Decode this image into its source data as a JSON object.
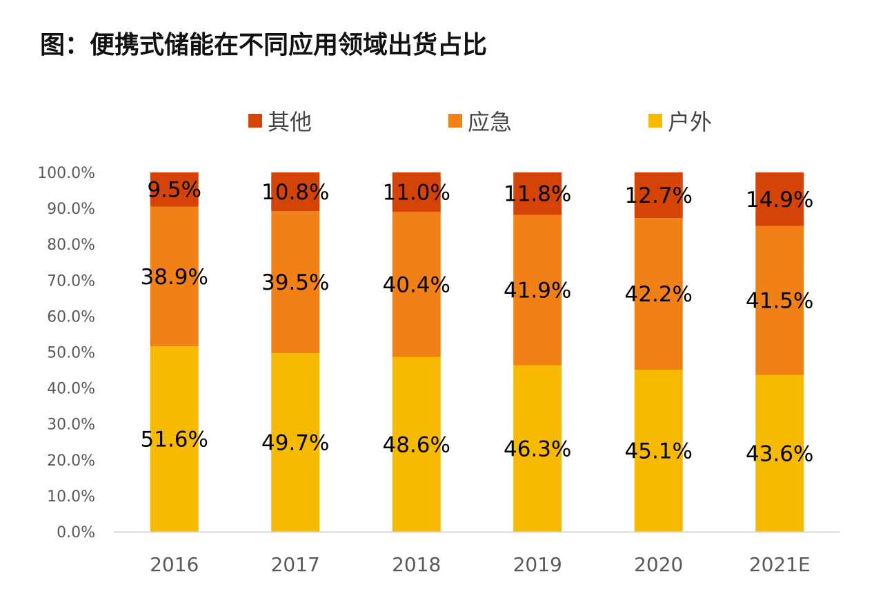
{
  "chart_data": {
    "type": "bar",
    "stacked": true,
    "title": "图：便携式储能在不同应用领域出货占比",
    "categories": [
      "2016",
      "2017",
      "2018",
      "2019",
      "2020",
      "2021E"
    ],
    "series": [
      {
        "name": "户外",
        "color": "#F8BA00",
        "values": [
          51.6,
          49.7,
          48.6,
          46.3,
          45.1,
          43.6
        ],
        "labels": [
          "51.6%",
          "49.7%",
          "48.6%",
          "46.3%",
          "45.1%",
          "43.6%"
        ]
      },
      {
        "name": "应急",
        "color": "#F18116",
        "values": [
          38.9,
          39.5,
          40.4,
          41.9,
          42.2,
          41.5
        ],
        "labels": [
          "38.9%",
          "39.5%",
          "40.4%",
          "41.9%",
          "42.2%",
          "41.5%"
        ]
      },
      {
        "name": "其他",
        "color": "#D44406",
        "values": [
          9.5,
          10.8,
          11.0,
          11.8,
          12.7,
          14.9
        ],
        "labels": [
          "9.5%",
          "10.8%",
          "11.0%",
          "11.8%",
          "12.7%",
          "14.9%"
        ]
      }
    ],
    "legend_order": [
      "其他",
      "应急",
      "户外"
    ],
    "ylim": [
      0,
      100
    ],
    "yticks": [
      "0.0%",
      "10.0%",
      "20.0%",
      "30.0%",
      "40.0%",
      "50.0%",
      "60.0%",
      "70.0%",
      "80.0%",
      "90.0%",
      "100.0%"
    ],
    "xlabel": "",
    "ylabel": "",
    "legend_position": "top"
  }
}
